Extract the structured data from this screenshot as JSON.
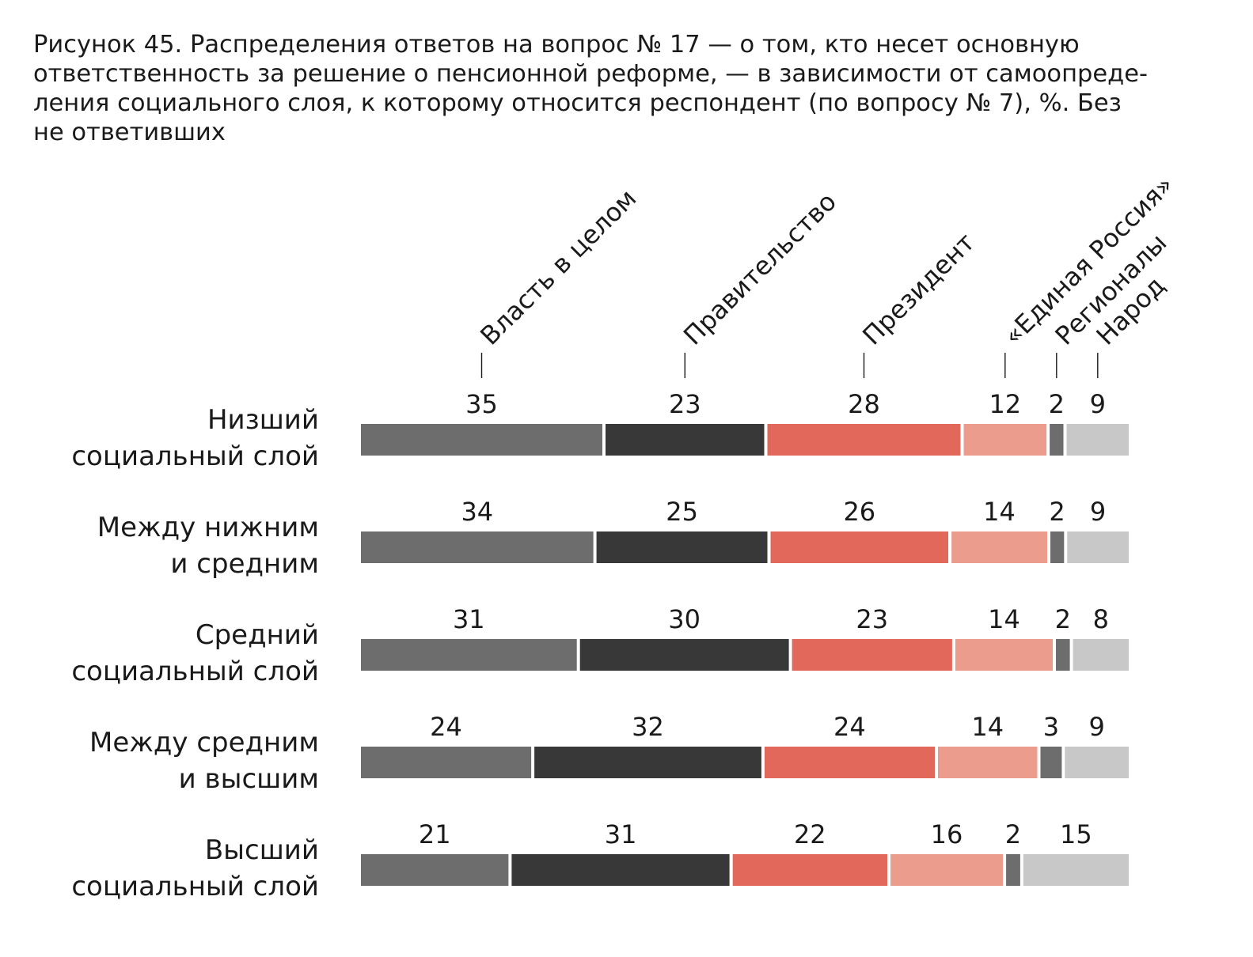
{
  "title_lines": [
    "Рисунок 45. Распределения ответов на вопрос № 17 — о том, кто несет основную",
    "ответственность за решение о пенсионной реформе, — в зависимости от самоопреде-",
    "ления социального слоя, к которому относится респондент (по вопросу № 7), %. Без",
    "не ответивших"
  ],
  "chart_data": {
    "type": "bar",
    "orientation": "horizontal",
    "stacked": true,
    "unit": "%",
    "title": "Рисунок 45. Распределения ответов на вопрос № 17 — о том, кто несет основную ответственность за решение о пенсионной реформе, — в зависимости от самоопределения социального слоя, к которому относится респондент (по вопросу № 7), %. Без не ответивших",
    "categories": [
      [
        "Низший",
        "социальный слой"
      ],
      [
        "Между нижним",
        "и средним"
      ],
      [
        "Средний",
        "социальный слой"
      ],
      [
        "Между средним",
        "и высшим"
      ],
      [
        "Высший",
        "социальный слой"
      ]
    ],
    "series": [
      {
        "name": "Власть в целом",
        "color": "#6d6d6d",
        "values": [
          35,
          34,
          31,
          24,
          21
        ]
      },
      {
        "name": "Правительство",
        "color": "#383838",
        "values": [
          23,
          25,
          30,
          32,
          31
        ]
      },
      {
        "name": "Президент",
        "color": "#e2685c",
        "values": [
          28,
          26,
          23,
          24,
          22
        ]
      },
      {
        "name": "«Единая Россия»",
        "color": "#ec9c8c",
        "values": [
          12,
          14,
          14,
          14,
          16
        ]
      },
      {
        "name": "Регионалы",
        "color": "#6d6d6d",
        "values": [
          2,
          2,
          2,
          3,
          2
        ]
      },
      {
        "name": "Народ",
        "color": "#c8c8c8",
        "values": [
          9,
          9,
          8,
          9,
          15
        ]
      }
    ],
    "legend_placement": "top, rotated labels above first row",
    "grid": false
  }
}
